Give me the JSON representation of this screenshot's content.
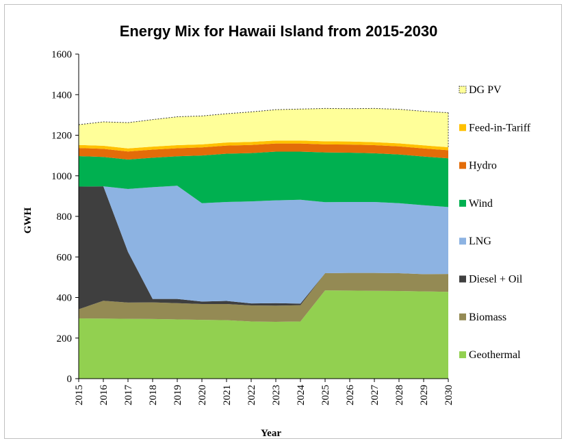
{
  "chart_data": {
    "type": "area",
    "stacked": true,
    "title": "Energy Mix for Hawaii Island from 2015-2030",
    "xlabel": "Year",
    "ylabel": "GWH",
    "ylim": [
      0,
      1600
    ],
    "yticks": [
      0,
      200,
      400,
      600,
      800,
      1000,
      1200,
      1400,
      1600
    ],
    "grid": false,
    "legend_position": "right",
    "x": [
      "2015",
      "2016",
      "2017",
      "2018",
      "2019",
      "2020",
      "2021",
      "2022",
      "2023",
      "2024",
      "2025",
      "2026",
      "2027",
      "2028",
      "2029",
      "2030"
    ],
    "series": [
      {
        "name": "Geothermal",
        "color": "#92d050",
        "values": [
          297,
          296,
          295,
          294,
          292,
          290,
          288,
          282,
          280,
          282,
          435,
          434,
          433,
          432,
          430,
          428
        ]
      },
      {
        "name": "Biomass",
        "color": "#948a54",
        "values": [
          45,
          88,
          80,
          82,
          80,
          78,
          80,
          79,
          80,
          80,
          85,
          87,
          88,
          88,
          85,
          88
        ]
      },
      {
        "name": "Diesel + Oil",
        "color": "#3f3f3f",
        "values": [
          605,
          564,
          250,
          17,
          21,
          12,
          15,
          10,
          12,
          8,
          0,
          0,
          0,
          0,
          0,
          0
        ]
      },
      {
        "name": "LNG",
        "color": "#8db3e2",
        "values": [
          0,
          0,
          310,
          551,
          558,
          485,
          488,
          503,
          507,
          512,
          350,
          350,
          350,
          345,
          340,
          330
        ]
      },
      {
        "name": "Wind",
        "color": "#00b050",
        "values": [
          150,
          145,
          145,
          145,
          145,
          235,
          238,
          238,
          240,
          237,
          245,
          243,
          240,
          240,
          240,
          240
        ]
      },
      {
        "name": "Hydro",
        "color": "#e36c09",
        "values": [
          40,
          40,
          40,
          40,
          40,
          40,
          40,
          40,
          40,
          40,
          40,
          40,
          40,
          40,
          40,
          40
        ]
      },
      {
        "name": "Feed-in-Tariff",
        "color": "#ffc000",
        "values": [
          15,
          15,
          15,
          15,
          15,
          15,
          15,
          15,
          15,
          15,
          15,
          15,
          15,
          15,
          15,
          15
        ]
      },
      {
        "name": "DG PV",
        "color": "#ffff99",
        "outline": "dotted",
        "values": [
          100,
          118,
          127,
          133,
          140,
          140,
          142,
          148,
          152,
          155,
          162,
          162,
          166,
          168,
          168,
          170
        ]
      }
    ]
  }
}
